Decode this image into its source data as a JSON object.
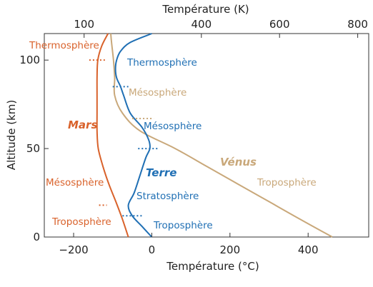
{
  "chart_data": {
    "type": "line",
    "x_bottom": {
      "label": "Température (°C)",
      "ticks": [
        -200,
        0,
        200,
        400
      ],
      "tick_labels": [
        "−200",
        "0",
        "200",
        "400"
      ],
      "range": [
        -275,
        555
      ]
    },
    "x_top": {
      "label": "Température (K)",
      "ticks": [
        100,
        400,
        600,
        800
      ],
      "tick_labels": [
        "100",
        "400",
        "600",
        "800"
      ]
    },
    "y": {
      "label": "Altitude (km)",
      "ticks": [
        0,
        50,
        100
      ],
      "tick_labels": [
        "0",
        "50",
        "100"
      ],
      "range": [
        0,
        115
      ]
    },
    "series": [
      {
        "name": "Mars",
        "color": "#d9622b",
        "points": [
          [
            -60,
            0
          ],
          [
            -75,
            10
          ],
          [
            -92,
            20
          ],
          [
            -110,
            30
          ],
          [
            -125,
            40
          ],
          [
            -137,
            50
          ],
          [
            -140,
            60
          ],
          [
            -140,
            70
          ],
          [
            -140,
            80
          ],
          [
            -140,
            90
          ],
          [
            -138,
            100
          ],
          [
            -128,
            108
          ],
          [
            -112,
            115
          ]
        ],
        "layers": [
          "Troposphère",
          "Mésosphère",
          "Thermosphère"
        ],
        "boundaries": [
          {
            "y": 18,
            "x": [
              -135,
              -115
            ]
          },
          {
            "y": 100,
            "x": [
              -160,
              -120
            ]
          }
        ]
      },
      {
        "name": "Terre",
        "color": "#1f6fb4",
        "points": [
          [
            0,
            0
          ],
          [
            -25,
            6
          ],
          [
            -50,
            12
          ],
          [
            -60,
            18
          ],
          [
            -45,
            25
          ],
          [
            -30,
            35
          ],
          [
            -15,
            45
          ],
          [
            -5,
            50
          ],
          [
            -8,
            55
          ],
          [
            -25,
            62
          ],
          [
            -55,
            70
          ],
          [
            -72,
            80
          ],
          [
            -80,
            85
          ],
          [
            -90,
            90
          ],
          [
            -93,
            95
          ],
          [
            -90,
            100
          ],
          [
            -80,
            105
          ],
          [
            -55,
            110
          ],
          [
            0,
            115
          ]
        ],
        "layers": [
          "Troposphère",
          "Stratosphère",
          "Mésosphère",
          "Thermosphère"
        ],
        "boundaries": [
          {
            "y": 12,
            "x": [
              -75,
              -25
            ]
          },
          {
            "y": 50,
            "x": [
              -35,
              15
            ]
          },
          {
            "y": 85,
            "x": [
              -100,
              -60
            ]
          }
        ]
      },
      {
        "name": "Vénus",
        "color": "#c9a87a",
        "points": [
          [
            462,
            0
          ],
          [
            380,
            10
          ],
          [
            300,
            20
          ],
          [
            220,
            30
          ],
          [
            140,
            40
          ],
          [
            60,
            50
          ],
          [
            -30,
            60
          ],
          [
            -75,
            70
          ],
          [
            -95,
            80
          ],
          [
            -95,
            90
          ],
          [
            -98,
            100
          ],
          [
            -103,
            110
          ],
          [
            -105,
            115
          ]
        ],
        "layers": [
          "Troposphère",
          "Mésosphère",
          "Thermosphère"
        ],
        "boundaries": [
          {
            "y": 67,
            "x": [
              -50,
              5
            ]
          }
        ]
      }
    ],
    "labels": {
      "mars_name": "Mars",
      "terre_name": "Terre",
      "venus_name": "Vénus",
      "mars_thermo": "Thermosphère",
      "mars_meso": "Mésosphère",
      "mars_tropo": "Troposphère",
      "terre_thermo": "Thermosphère",
      "terre_meso": "Mésosphère",
      "terre_strato": "Stratosphère",
      "terre_tropo": "Troposphère",
      "venus_meso": "Mésosphère",
      "venus_tropo": "Troposphère"
    }
  }
}
